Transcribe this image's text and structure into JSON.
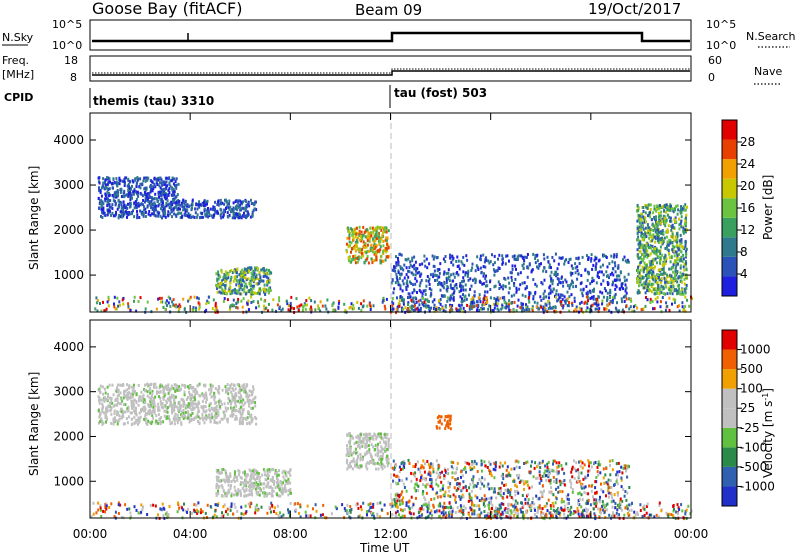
{
  "header": {
    "station": "Goose Bay (fitACF)",
    "beam": "Beam 09",
    "date": "19/Oct/2017"
  },
  "panels": {
    "nsky": {
      "left_label": "N.Sky",
      "right_label": "N.Search",
      "left_ticks": [
        "10^5",
        "10^0"
      ],
      "right_ticks": [
        "10^5",
        "10^0"
      ]
    },
    "freq": {
      "left_label_1": "Freq.",
      "left_label_2": "[MHz]",
      "right_label": "Nave",
      "left_ticks": [
        "18",
        "8"
      ],
      "right_ticks": [
        "60",
        "0"
      ]
    },
    "cpid": {
      "label": "CPID",
      "segments": [
        {
          "text": "themis (tau) 3310",
          "start_hour": 0
        },
        {
          "text": "tau (fost) 503",
          "start_hour": 12
        }
      ]
    }
  },
  "colorbars": {
    "power": {
      "title": "Power [dB]",
      "ticks": [
        "28",
        "24",
        "20",
        "16",
        "12",
        "8",
        "4"
      ],
      "colors": [
        "#1f1fe0",
        "#2a52b8",
        "#2e7a8c",
        "#3aa060",
        "#6bc440",
        "#c8c800",
        "#f0a000",
        "#e84000",
        "#e00000"
      ]
    },
    "velocity": {
      "title": "Velocity [m s",
      "title_sup": "-1",
      "title_close": "]",
      "ticks": [
        "1000",
        "500",
        "100",
        "25",
        "-25",
        "-100",
        "-500",
        "-1000"
      ],
      "colors": [
        "#2030c8",
        "#3060b0",
        "#2a8a4a",
        "#60c040",
        "#c0c0c0",
        "#c0c0c0",
        "#f0a000",
        "#f06000",
        "#e00000"
      ]
    }
  },
  "chart_data": [
    {
      "type": "heatmap",
      "name": "power",
      "ylabel": "Slant Range [km]",
      "ylim": [
        180,
        4600
      ],
      "yticks": [
        1000,
        2000,
        3000,
        4000
      ],
      "xlim_hours": [
        0,
        24
      ],
      "xticks": [
        "00:00",
        "04:00",
        "08:00",
        "12:00",
        "16:00",
        "20:00",
        "00:00"
      ],
      "features": [
        {
          "hours": [
            0.3,
            3.5
          ],
          "range_km": [
            2300,
            3200
          ],
          "level": "low"
        },
        {
          "hours": [
            3.5,
            6.6
          ],
          "range_km": [
            2300,
            2700
          ],
          "level": "low"
        },
        {
          "hours": [
            5.0,
            7.2
          ],
          "range_km": [
            600,
            1200
          ],
          "level": "mid"
        },
        {
          "hours": [
            10.2,
            11.9
          ],
          "range_km": [
            1300,
            2100
          ],
          "level": "high"
        },
        {
          "hours": [
            12.0,
            21.5
          ],
          "range_km": [
            200,
            1500
          ],
          "level": "low"
        },
        {
          "hours": [
            21.8,
            23.8
          ],
          "range_km": [
            600,
            2600
          ],
          "level": "mid"
        }
      ]
    },
    {
      "type": "heatmap",
      "name": "velocity",
      "ylabel": "Slant Range [km]",
      "xlabel": "Time UT",
      "ylim": [
        180,
        4600
      ],
      "yticks": [
        1000,
        2000,
        3000,
        4000
      ],
      "xlim_hours": [
        0,
        24
      ],
      "xticks": [
        "00:00",
        "04:00",
        "08:00",
        "12:00",
        "16:00",
        "20:00",
        "00:00"
      ],
      "features": [
        {
          "hours": [
            0.3,
            6.6
          ],
          "range_km": [
            2300,
            3200
          ],
          "velocity": "ground scatter"
        },
        {
          "hours": [
            5.0,
            8.0
          ],
          "range_km": [
            700,
            1300
          ],
          "velocity": "ground scatter"
        },
        {
          "hours": [
            10.2,
            11.9
          ],
          "range_km": [
            1300,
            2100
          ],
          "velocity": "ground scatter"
        },
        {
          "hours": [
            12.0,
            21.5
          ],
          "range_km": [
            200,
            1500
          ],
          "velocity": "mixed"
        },
        {
          "hours": [
            13.8,
            14.4
          ],
          "range_km": [
            2200,
            2500
          ],
          "velocity": "-500"
        }
      ]
    }
  ]
}
